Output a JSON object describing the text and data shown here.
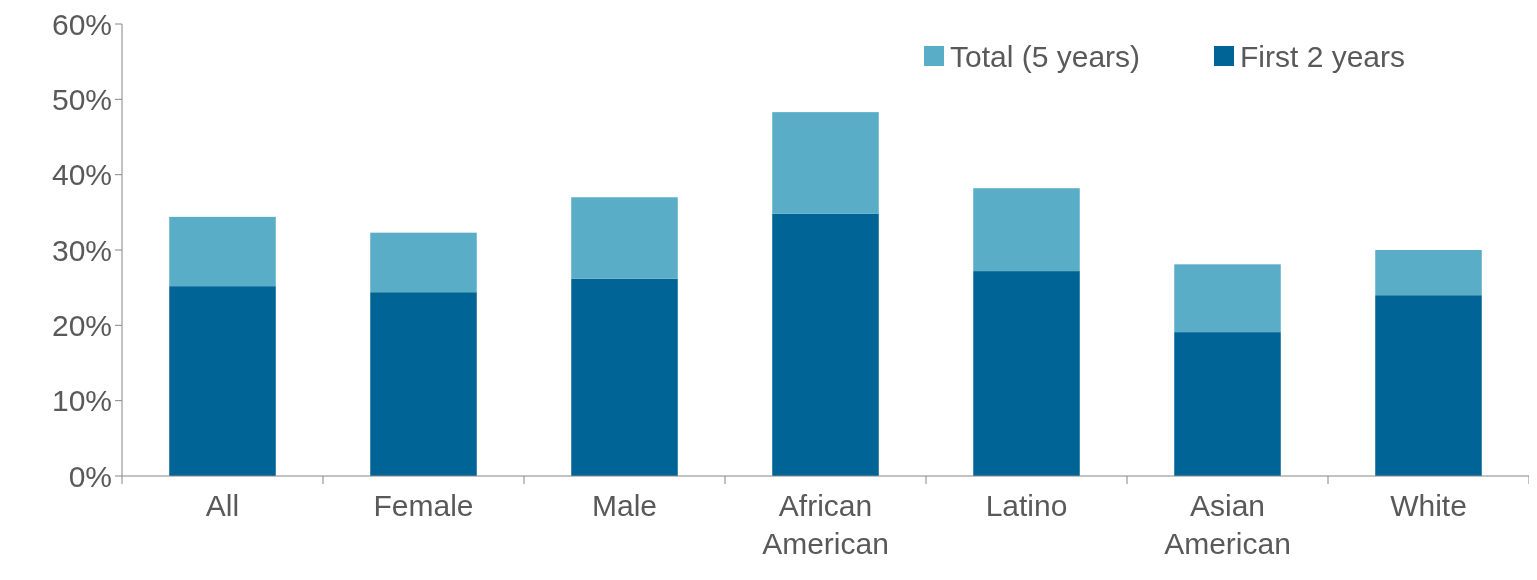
{
  "chart_data": {
    "type": "bar",
    "stacked": true,
    "categories": [
      "All",
      "Female",
      "Male",
      "African American",
      "Latino",
      "Asian American",
      "White"
    ],
    "series": [
      {
        "name": "First 2 years",
        "color": "#006496",
        "values": [
          25.2,
          24.4,
          26.2,
          34.8,
          27.2,
          19.1,
          24.0
        ]
      },
      {
        "name": "Total (5 years)",
        "color": "#5aadc6",
        "values": [
          9.2,
          7.9,
          10.8,
          13.5,
          11.0,
          9.0,
          6.0
        ]
      }
    ],
    "ylim": [
      0,
      60
    ],
    "yticks": [
      {
        "value": 0,
        "label": "0%"
      },
      {
        "value": 10,
        "label": "10%"
      },
      {
        "value": 20,
        "label": "20%"
      },
      {
        "value": 30,
        "label": "30%"
      },
      {
        "value": 40,
        "label": "40%"
      },
      {
        "value": 50,
        "label": "50%"
      },
      {
        "value": 60,
        "label": "60%"
      }
    ],
    "grid": false,
    "legend": "top right"
  }
}
